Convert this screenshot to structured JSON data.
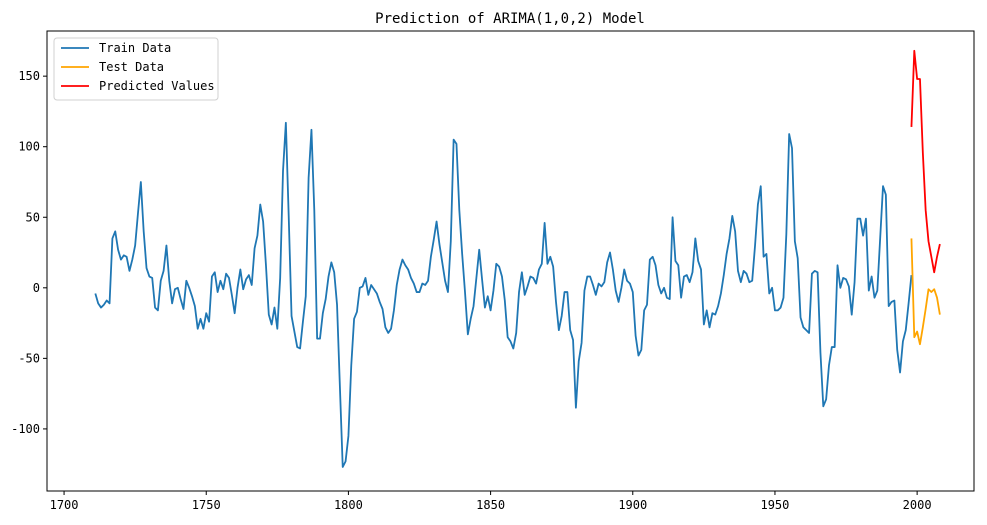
{
  "chart_data": {
    "type": "line",
    "title": "Prediction of ARIMA(1,0,2) Model",
    "xlabel": "",
    "ylabel": "",
    "xlim": [
      1694,
      2020
    ],
    "ylim": [
      -144,
      182
    ],
    "x_ticks": [
      1700,
      1750,
      1800,
      1850,
      1900,
      1950,
      2000
    ],
    "y_ticks": [
      -100,
      -50,
      0,
      50,
      100,
      150
    ],
    "grid": false,
    "legend_position": "top-left",
    "colors": {
      "train": "#1f77b4",
      "test": "#ffa500",
      "predicted": "#ff0000"
    },
    "series": [
      {
        "name": "Train Data",
        "color": "#1f77b4",
        "x": [
          1711,
          1712,
          1713,
          1714,
          1715,
          1716,
          1717,
          1718,
          1719,
          1720,
          1721,
          1722,
          1723,
          1724,
          1725,
          1726,
          1727,
          1728,
          1729,
          1730,
          1731,
          1732,
          1733,
          1734,
          1735,
          1736,
          1737,
          1738,
          1739,
          1740,
          1741,
          1742,
          1743,
          1744,
          1745,
          1746,
          1747,
          1748,
          1749,
          1750,
          1751,
          1752,
          1753,
          1754,
          1755,
          1756,
          1757,
          1758,
          1759,
          1760,
          1761,
          1762,
          1763,
          1764,
          1765,
          1766,
          1767,
          1768,
          1769,
          1770,
          1771,
          1772,
          1773,
          1774,
          1775,
          1776,
          1777,
          1778,
          1779,
          1780,
          1781,
          1782,
          1783,
          1784,
          1785,
          1786,
          1787,
          1788,
          1789,
          1790,
          1791,
          1792,
          1793,
          1794,
          1795,
          1796,
          1797,
          1798,
          1799,
          1800,
          1801,
          1802,
          1803,
          1804,
          1805,
          1806,
          1807,
          1808,
          1809,
          1810,
          1811,
          1812,
          1813,
          1814,
          1815,
          1816,
          1817,
          1818,
          1819,
          1820,
          1821,
          1822,
          1823,
          1824,
          1825,
          1826,
          1827,
          1828,
          1829,
          1830,
          1831,
          1832,
          1833,
          1834,
          1835,
          1836,
          1837,
          1838,
          1839,
          1840,
          1841,
          1842,
          1843,
          1844,
          1845,
          1846,
          1847,
          1848,
          1849,
          1850,
          1851,
          1852,
          1853,
          1854,
          1855,
          1856,
          1857,
          1858,
          1859,
          1860,
          1861,
          1862,
          1863,
          1864,
          1865,
          1866,
          1867,
          1868,
          1869,
          1870,
          1871,
          1872,
          1873,
          1874,
          1875,
          1876,
          1877,
          1878,
          1879,
          1880,
          1881,
          1882,
          1883,
          1884,
          1885,
          1886,
          1887,
          1888,
          1889,
          1890,
          1891,
          1892,
          1893,
          1894,
          1895,
          1896,
          1897,
          1898,
          1899,
          1900,
          1901,
          1902,
          1903,
          1904,
          1905,
          1906,
          1907,
          1908,
          1909,
          1910,
          1911,
          1912,
          1913,
          1914,
          1915,
          1916,
          1917,
          1918,
          1919,
          1920,
          1921,
          1922,
          1923,
          1924,
          1925,
          1926,
          1927,
          1928,
          1929,
          1930,
          1931,
          1932,
          1933,
          1934,
          1935,
          1936,
          1937,
          1938,
          1939,
          1940,
          1941,
          1942,
          1943,
          1944,
          1945,
          1946,
          1947,
          1948,
          1949,
          1950,
          1951,
          1952,
          1953,
          1954,
          1955,
          1956,
          1957,
          1958,
          1959,
          1960,
          1961,
          1962,
          1963,
          1964,
          1965,
          1966,
          1967,
          1968,
          1969,
          1970,
          1971,
          1972,
          1973,
          1974,
          1975,
          1976,
          1977,
          1978,
          1979,
          1980,
          1981,
          1982,
          1983,
          1984,
          1985,
          1986,
          1987,
          1988,
          1989,
          1990,
          1991,
          1992,
          1993,
          1994,
          1995,
          1996,
          1997,
          1998
        ],
        "values": [
          -4,
          -11,
          -14,
          -12,
          -9,
          -11,
          35,
          40,
          27,
          20,
          23,
          22,
          12,
          20,
          30,
          53,
          75,
          40,
          14,
          8,
          7,
          -14,
          -16,
          5,
          12,
          30,
          5,
          -11,
          -1,
          0,
          -8,
          -15,
          5,
          0,
          -6,
          -13,
          -29,
          -22,
          -29,
          -18,
          -24,
          8,
          11,
          -3,
          5,
          -1,
          10,
          7,
          -5,
          -18,
          0,
          13,
          -1,
          6,
          9,
          2,
          28,
          37,
          59,
          47,
          16,
          -19,
          -26,
          -14,
          -29,
          7,
          83,
          117,
          51,
          -20,
          -31,
          -42,
          -43,
          -24,
          -6,
          78,
          112,
          55,
          -36,
          -36,
          -18,
          -8,
          8,
          18,
          11,
          -12,
          -70,
          -127,
          -123,
          -105,
          -55,
          -22,
          -17,
          0,
          1,
          7,
          -5,
          2,
          -1,
          -4,
          -10,
          -15,
          -28,
          -32,
          -29,
          -16,
          2,
          13,
          20,
          16,
          13,
          7,
          3,
          -3,
          -3,
          3,
          2,
          5,
          22,
          34,
          47,
          31,
          18,
          5,
          -3,
          33,
          105,
          102,
          55,
          24,
          -3,
          -33,
          -22,
          -13,
          7,
          27,
          6,
          -14,
          -6,
          -16,
          -2,
          17,
          15,
          8,
          -9,
          -35,
          -38,
          -43,
          -32,
          -3,
          11,
          -5,
          1,
          8,
          7,
          3,
          13,
          17,
          46,
          17,
          22,
          15,
          -10,
          -30,
          -20,
          -3,
          -3,
          -30,
          -37,
          -85,
          -52,
          -39,
          -2,
          8,
          8,
          2,
          -5,
          3,
          1,
          4,
          18,
          25,
          13,
          -2,
          -10,
          0,
          13,
          5,
          3,
          -3,
          -34,
          -48,
          -44,
          -16,
          -12,
          20,
          22,
          16,
          2,
          -4,
          0,
          -7,
          -8,
          50,
          19,
          16,
          -7,
          8,
          9,
          4,
          11,
          35,
          19,
          13,
          -26,
          -16,
          -28,
          -18,
          -19,
          -13,
          -4,
          9,
          24,
          35,
          51,
          40,
          12,
          4,
          12,
          10,
          4,
          5,
          30,
          59,
          72,
          22,
          24,
          -4,
          0,
          -16,
          -16,
          -14,
          -7,
          38,
          109,
          99,
          33,
          21,
          -21,
          -28,
          -30,
          -32,
          10,
          12,
          11,
          -46,
          -84,
          -79,
          -55,
          -42,
          -42,
          16,
          0,
          7,
          6,
          1,
          -19,
          4,
          49,
          49,
          37,
          49,
          -2,
          8,
          -7,
          -2,
          35,
          72,
          66,
          -13,
          -10,
          -9,
          -44,
          -60,
          -38,
          -30,
          -11,
          9
        ]
      },
      {
        "name": "Test Data",
        "color": "#ffa500",
        "x": [
          1998,
          1999,
          2000,
          2001,
          2002,
          2003,
          2004,
          2005,
          2006,
          2007,
          2008
        ],
        "values": [
          35,
          -35,
          -31,
          -40,
          -28,
          -15,
          -1,
          -3,
          -1,
          -7,
          -19
        ]
      },
      {
        "name": "Predicted Values",
        "color": "#ff0000",
        "x": [
          1998,
          1999,
          2000,
          2001,
          2002,
          2003,
          2004,
          2005,
          2006,
          2007,
          2008
        ],
        "values": [
          114,
          168,
          148,
          148,
          96,
          55,
          33,
          22,
          11,
          22,
          31
        ]
      }
    ]
  }
}
